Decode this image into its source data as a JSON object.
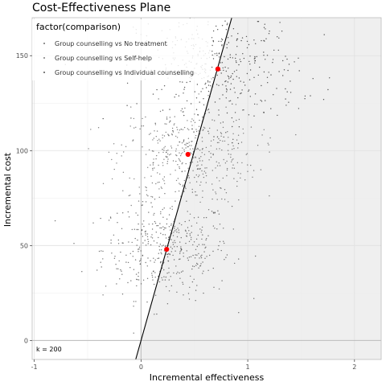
{
  "chart_data": {
    "type": "scatter",
    "title": "Cost-Effectiveness Plane",
    "xlabel": "Incremental effectiveness",
    "ylabel": "Incremental cost",
    "xlim": [
      -1.02,
      2.25
    ],
    "ylim": [
      -10,
      170
    ],
    "x_ticks": [
      -1,
      0,
      1,
      2
    ],
    "x_tick_labels": [
      "-1",
      "0",
      "1",
      "2"
    ],
    "y_ticks": [
      0,
      50,
      100,
      150
    ],
    "y_tick_labels": [
      "0",
      "50",
      "100",
      "150"
    ],
    "grid": true,
    "legend": {
      "title": "factor(comparison)",
      "position": "top-left",
      "entries": [
        "Group counselling vs No treatment",
        "Group counselling vs Self-help",
        "Group counselling vs Individual counselling"
      ]
    },
    "wtp_annotation": "k = 200",
    "wtp_line": {
      "intercept": 0,
      "slope": 200
    },
    "series": [
      {
        "name": "Group counselling vs No treatment",
        "mean": {
          "x": 0.24,
          "y": 48
        },
        "sd": {
          "x": 0.3,
          "y": 13
        },
        "n": 420,
        "color": "#444444"
      },
      {
        "name": "Group counselling vs Self-help",
        "mean": {
          "x": 0.44,
          "y": 98
        },
        "sd": {
          "x": 0.32,
          "y": 13
        },
        "n": 420,
        "color": "#555555"
      },
      {
        "name": "Group counselling vs Individual counselling",
        "mean": {
          "x": 0.72,
          "y": 143
        },
        "sd": {
          "x": 0.38,
          "y": 15
        },
        "n": 420,
        "color": "#222222"
      }
    ],
    "mean_point_color": "#ff0000",
    "region_fill": "#efefef",
    "panel_border": "#bdbdbd"
  }
}
